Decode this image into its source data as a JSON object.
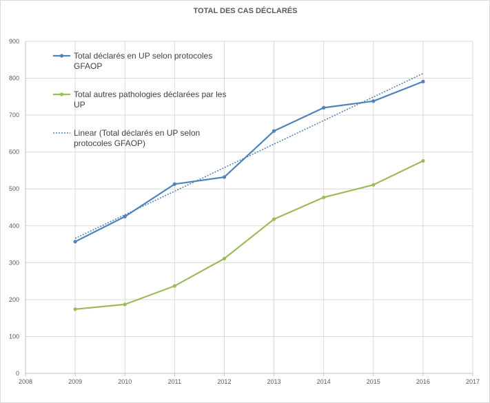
{
  "chart_data": {
    "type": "line",
    "title": "TOTAL DES CAS DÉCLARÉS",
    "xlabel": "",
    "ylabel": "",
    "xlim": [
      2008,
      2017
    ],
    "ylim": [
      0,
      900
    ],
    "x_ticks": [
      "2008",
      "2009",
      "2010",
      "2011",
      "2012",
      "2013",
      "2014",
      "2015",
      "2016",
      "2017"
    ],
    "y_ticks": [
      "0",
      "100",
      "200",
      "300",
      "400",
      "500",
      "600",
      "700",
      "800",
      "900"
    ],
    "grid": true,
    "legend_position": "top-left",
    "series": [
      {
        "name": "Total déclarés en UP selon protocoles GFAOP",
        "legend_lines": [
          "Total déclarés en UP selon protocoles",
          "GFAOP"
        ],
        "color": "#4f81bd",
        "style": "solid-markers",
        "x": [
          2009,
          2010,
          2011,
          2012,
          2013,
          2014,
          2015,
          2016
        ],
        "values": [
          357,
          425,
          513,
          532,
          657,
          720,
          738,
          791
        ]
      },
      {
        "name": "Total autres pathologies déclarées par les UP",
        "legend_lines": [
          "Total autres pathologies déclarées par les",
          "UP"
        ],
        "color": "#9bbb59",
        "style": "solid-markers",
        "x": [
          2009,
          2010,
          2011,
          2012,
          2013,
          2014,
          2015,
          2016
        ],
        "values": [
          174,
          187,
          237,
          311,
          418,
          477,
          511,
          576
        ]
      },
      {
        "name": "Linear (Total déclarés en UP selon protocoles GFAOP)",
        "legend_lines": [
          "Linear (Total déclarés en UP selon",
          "protocoles GFAOP)"
        ],
        "color": "#4f81bd",
        "style": "dotted",
        "x": [
          2009,
          2016
        ],
        "values": [
          366,
          813
        ]
      }
    ]
  }
}
